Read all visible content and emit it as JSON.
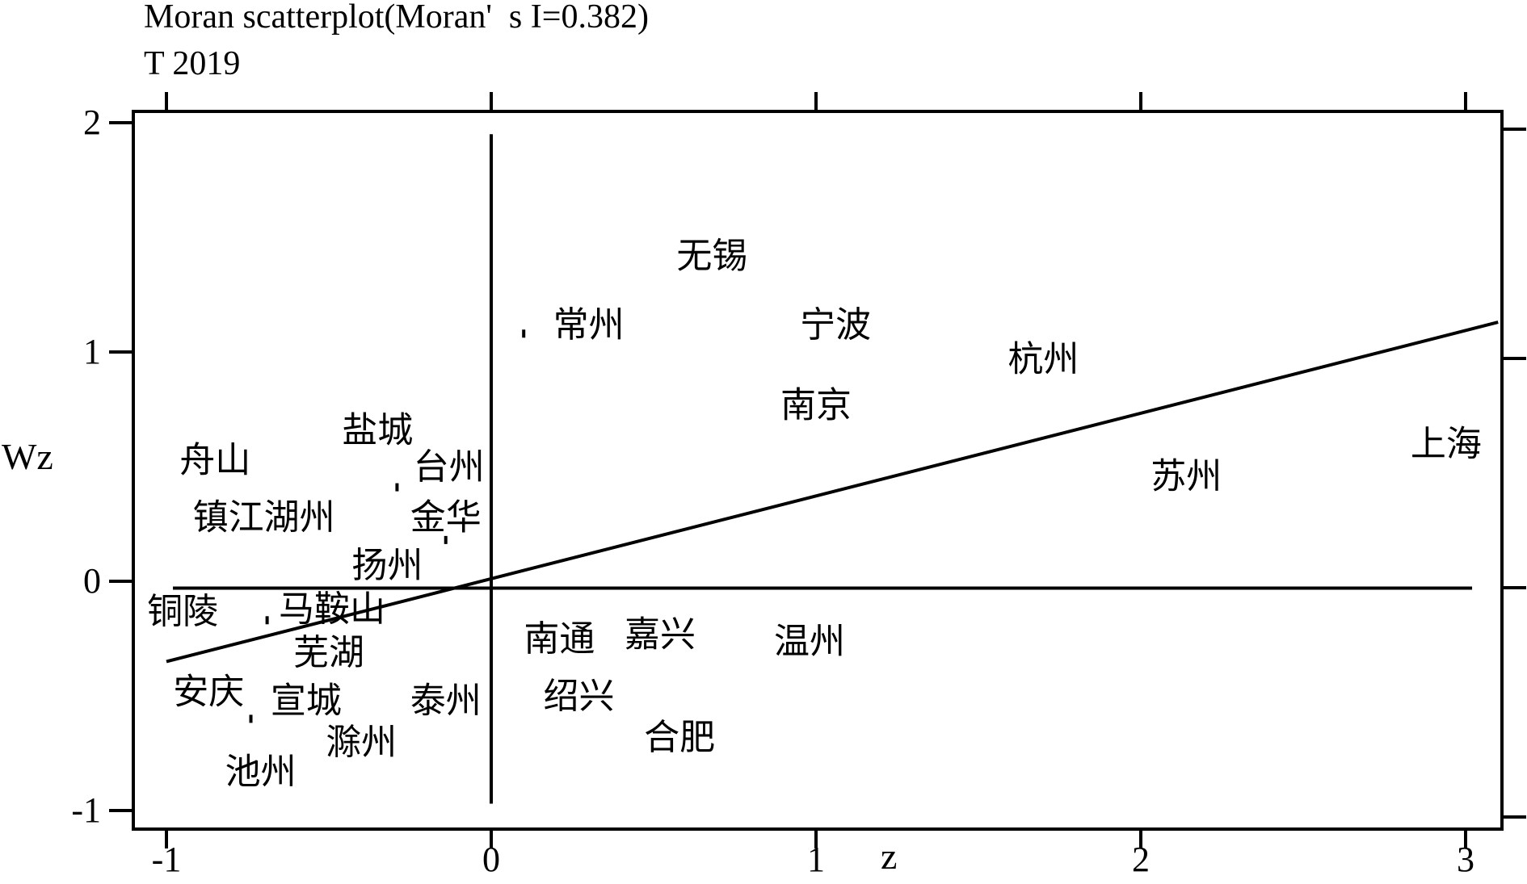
{
  "title_line1": "Moran scatterplot(Moran'  s I=0.382)",
  "title_line2": "T 2019",
  "chart_data": {
    "type": "scatter",
    "title": "Moran scatterplot(Moran'  s I=0.382)",
    "subtitle": "T 2019",
    "xlabel": "z",
    "ylabel": "Wz",
    "xlim": [
      -1.1,
      3.1
    ],
    "ylim": [
      -1.15,
      2.05
    ],
    "xticks": [
      -1,
      0,
      1,
      2,
      3
    ],
    "yticks": [
      -1,
      0,
      1,
      2
    ],
    "xtick_labels": [
      "-1",
      "0",
      "1",
      "2",
      "3"
    ],
    "ytick_labels": [
      "-1",
      "0",
      "1",
      "2"
    ],
    "grid": false,
    "slope": 0.382,
    "fit_line": {
      "x": [
        -1.0,
        3.1
      ],
      "y": [
        -0.35,
        1.13
      ]
    },
    "points": [
      {
        "label": "无锡",
        "x": 0.68,
        "y": 1.42
      },
      {
        "label": "常州",
        "x": 0.3,
        "y": 1.12
      },
      {
        "label": "宁波",
        "x": 1.06,
        "y": 1.12
      },
      {
        "label": "杭州",
        "x": 1.7,
        "y": 0.97
      },
      {
        "label": "南京",
        "x": 1.0,
        "y": 0.77
      },
      {
        "label": "上海",
        "x": 2.94,
        "y": 0.6
      },
      {
        "label": "苏州",
        "x": 2.14,
        "y": 0.46
      },
      {
        "label": "盐城",
        "x": -0.35,
        "y": 0.66
      },
      {
        "label": "舟山",
        "x": -0.85,
        "y": 0.53
      },
      {
        "label": "台州",
        "x": -0.13,
        "y": 0.5
      },
      {
        "label": "镇江湖州",
        "x": -0.7,
        "y": 0.28
      },
      {
        "label": "金华",
        "x": -0.14,
        "y": 0.28
      },
      {
        "label": "扬州",
        "x": -0.32,
        "y": 0.07
      },
      {
        "label": "铜陵",
        "x": -0.95,
        "y": -0.13
      },
      {
        "label": "马鞍山",
        "x": -0.49,
        "y": -0.12
      },
      {
        "label": "芜湖",
        "x": -0.5,
        "y": -0.31
      },
      {
        "label": "南通",
        "x": 0.21,
        "y": -0.25
      },
      {
        "label": "嘉兴",
        "x": 0.52,
        "y": -0.23
      },
      {
        "label": "温州",
        "x": 0.98,
        "y": -0.26
      },
      {
        "label": "安庆",
        "x": -0.87,
        "y": -0.48
      },
      {
        "label": "宣城",
        "x": -0.57,
        "y": -0.52
      },
      {
        "label": "泰州",
        "x": -0.14,
        "y": -0.52
      },
      {
        "label": "绍兴",
        "x": 0.27,
        "y": -0.5
      },
      {
        "label": "合肥",
        "x": 0.58,
        "y": -0.68
      },
      {
        "label": "滁州",
        "x": -0.4,
        "y": -0.7
      },
      {
        "label": "池州",
        "x": -0.71,
        "y": -0.83
      }
    ]
  }
}
